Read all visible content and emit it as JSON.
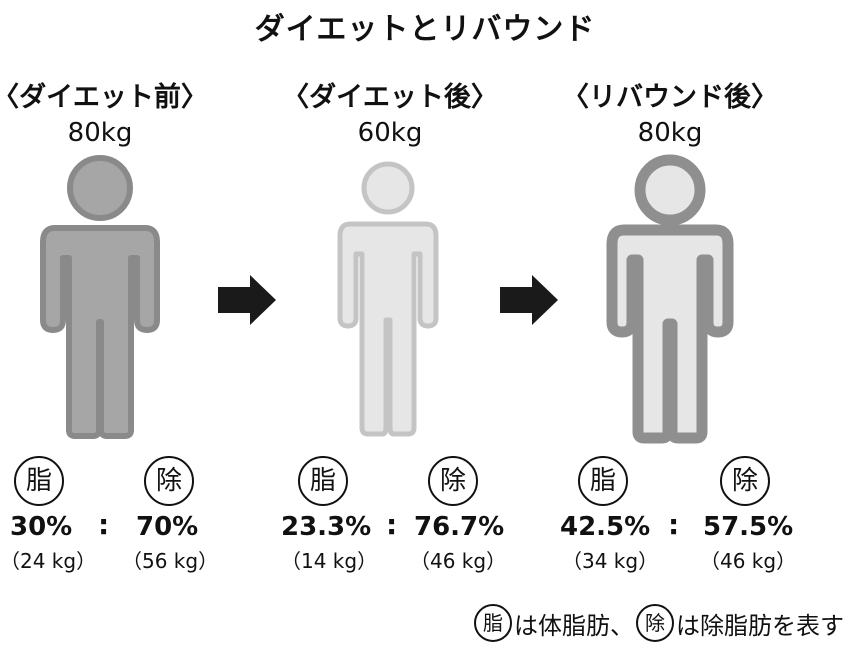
{
  "title": "ダイエットとリバウンド",
  "stages": [
    {
      "label": "〈ダイエット前〉",
      "weight": "80kg",
      "fat_symbol": "脂",
      "lean_symbol": "除",
      "fat_pct": "30%",
      "lean_pct": "70%",
      "fat_kg": "（24 kg）",
      "lean_kg": "（56 kg）",
      "fill": "#a6a6a6",
      "stroke": "#8a8a8a"
    },
    {
      "label": "〈ダイエット後〉",
      "weight": "60kg",
      "fat_symbol": "脂",
      "lean_symbol": "除",
      "fat_pct": "23.3%",
      "lean_pct": "76.7%",
      "fat_kg": "（14 kg）",
      "lean_kg": "（46 kg）",
      "fill": "#e6e6e6",
      "stroke": "#c4c4c4"
    },
    {
      "label": "〈リバウンド後〉",
      "weight": "80kg",
      "fat_symbol": "脂",
      "lean_symbol": "除",
      "fat_pct": "42.5%",
      "lean_pct": "57.5%",
      "fat_kg": "（34 kg）",
      "lean_kg": "（46 kg）",
      "fill": "#e6e6e6",
      "stroke": "#8f8f8f"
    }
  ],
  "colon": ":",
  "note": {
    "fat_symbol": "脂",
    "fat_text": "は体脂肪、",
    "lean_symbol": "除",
    "lean_text": "は除脂肪を表す"
  },
  "arrow_color": "#1a1a1a"
}
